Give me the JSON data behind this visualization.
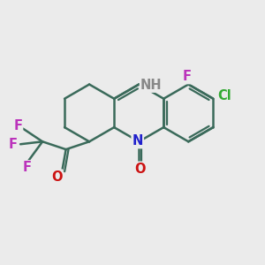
{
  "bg_color": "#ebebeb",
  "bond_color": "#3a6a5a",
  "bond_width": 1.8,
  "atom_colors": {
    "N": "#2020cc",
    "NH": "#888888",
    "O": "#cc1111",
    "F": "#bb33bb",
    "Cl": "#33aa33",
    "C": "#3a6a5a"
  },
  "font_size": 10.5
}
